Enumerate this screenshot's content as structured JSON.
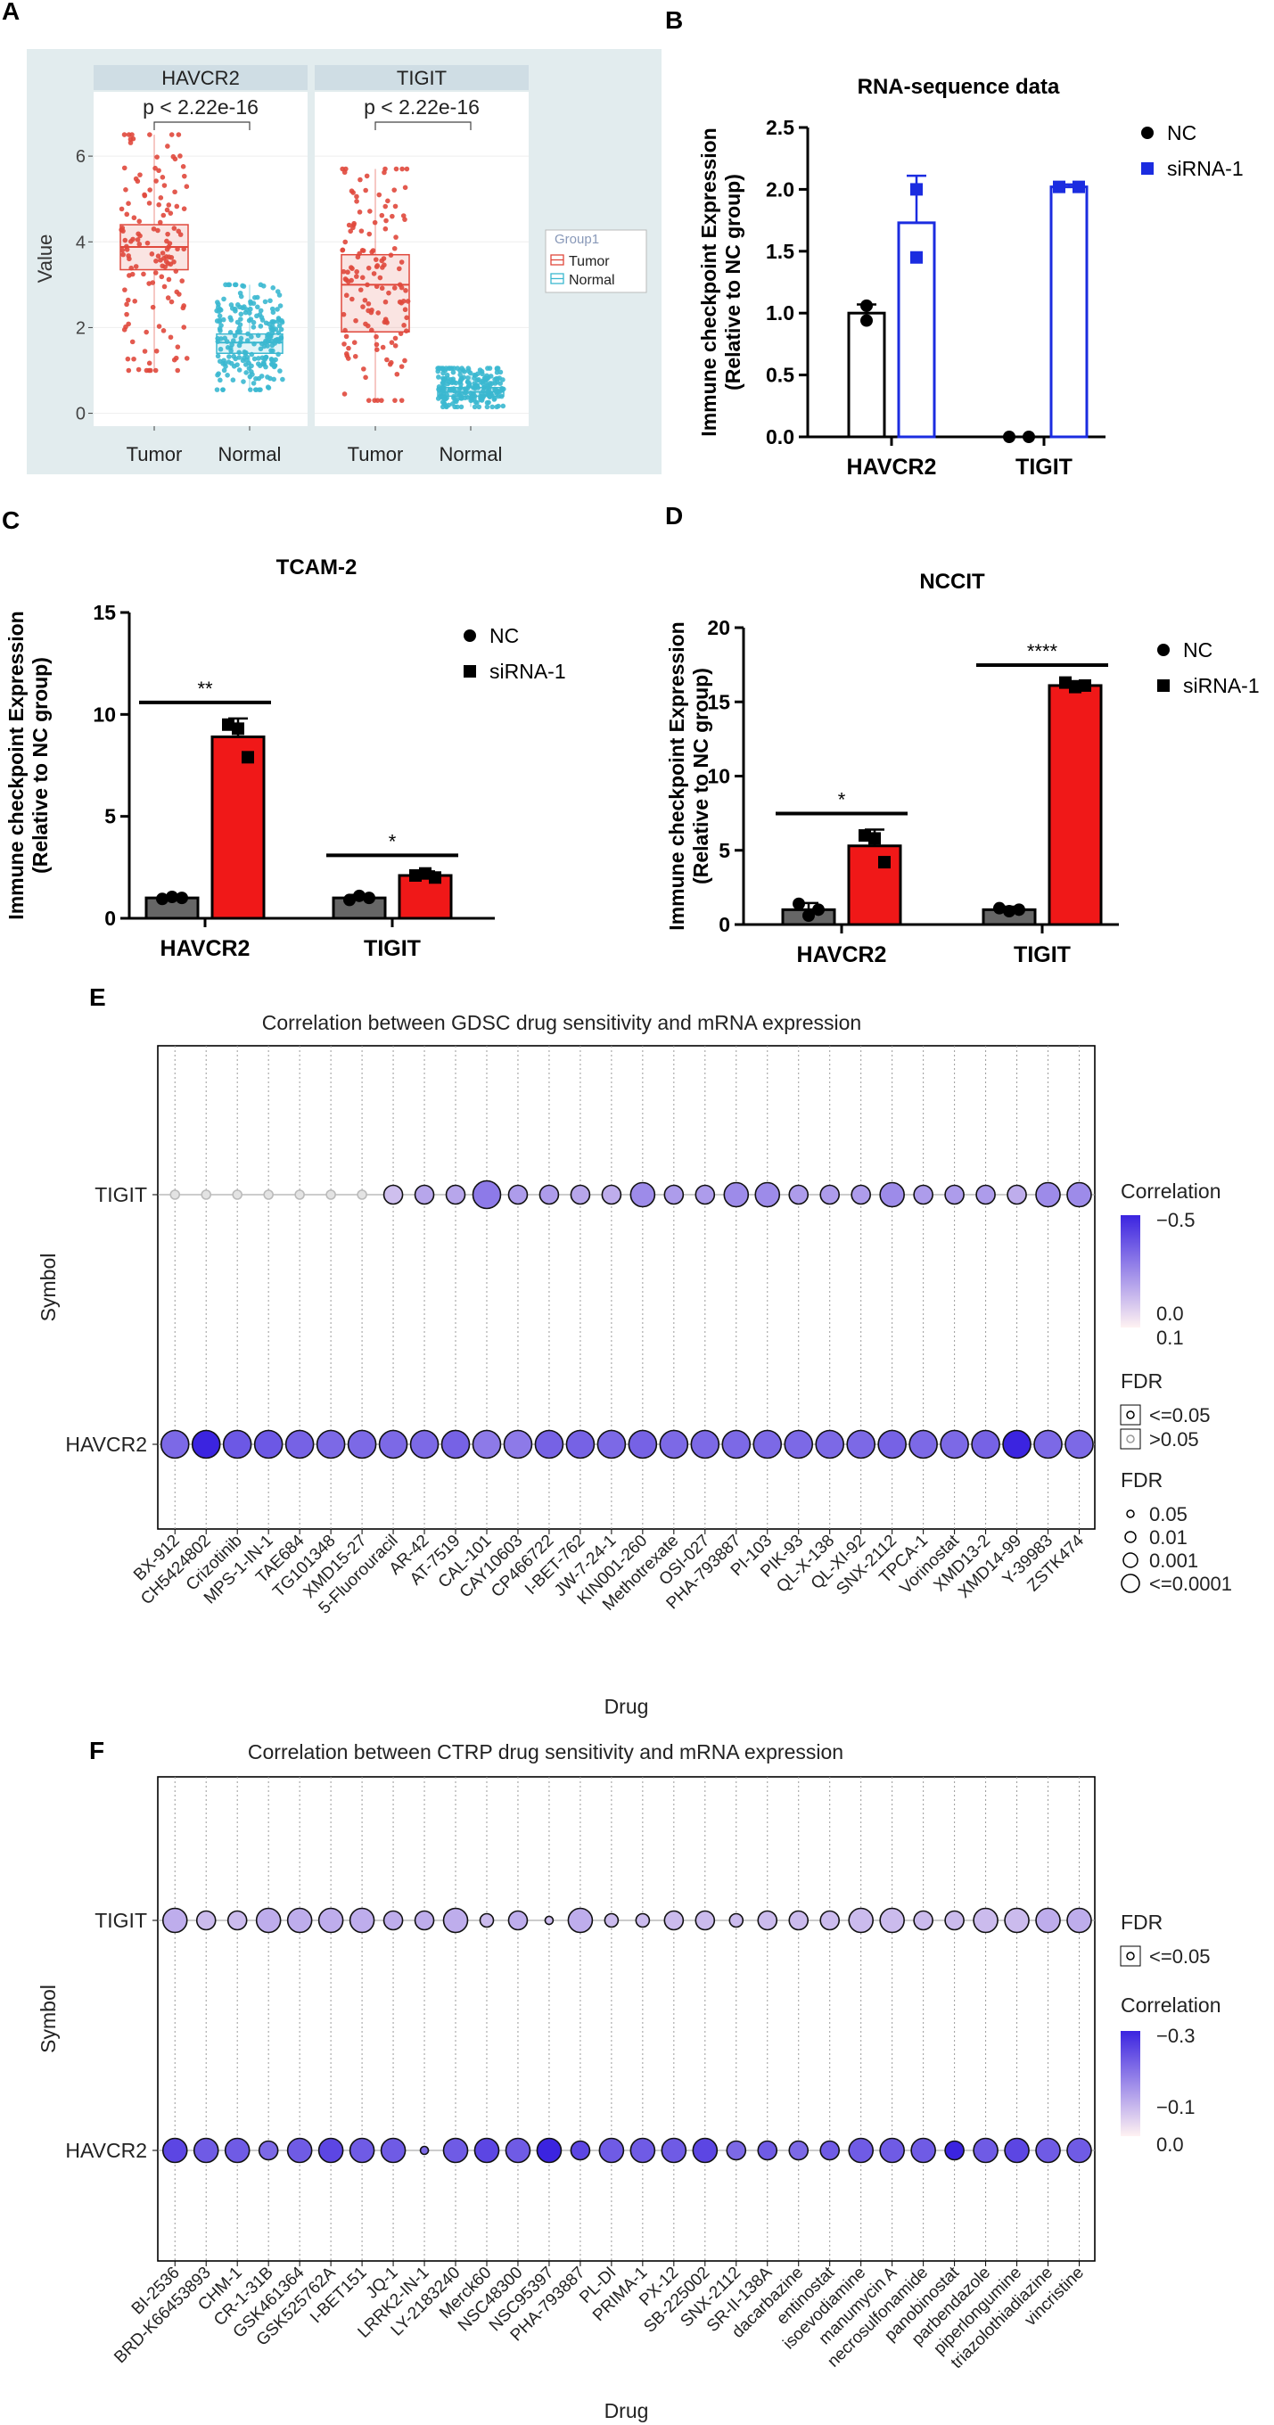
{
  "panel_letters": [
    "A",
    "B",
    "C",
    "D",
    "E",
    "F"
  ],
  "colors": {
    "tumor": "#E0483C",
    "normal": "#3BB8D0",
    "panel_bg": "#E2ECEE",
    "strip_bg": "#CFDDE4",
    "nc_dark": "#666666",
    "sirna_red": "#F01818",
    "sirna_blue": "#1B2CE0",
    "bubble_min": "#FFF2F2",
    "bubble_max": "#3B24E0",
    "bubble_nonsig": "#E3E3E3"
  },
  "chart_data": [
    {
      "id": "A",
      "type": "box",
      "facets": [
        "HAVCR2",
        "TIGIT"
      ],
      "categories": [
        "Tumor",
        "Normal"
      ],
      "ylabel": "Value",
      "ylim": [
        -0.3,
        7.5
      ],
      "yticks": [
        0,
        2,
        4,
        6
      ],
      "annotation": "p < 2.22e-16",
      "legend_title": "Group1",
      "legend": [
        "Tumor",
        "Normal"
      ],
      "boxes": [
        {
          "facet": "HAVCR2",
          "group": "Tumor",
          "q1": 3.35,
          "median": 3.88,
          "q3": 4.4,
          "lo": 1.0,
          "hi": 6.5
        },
        {
          "facet": "HAVCR2",
          "group": "Normal",
          "q1": 1.4,
          "median": 1.65,
          "q3": 1.85,
          "lo": 0.55,
          "hi": 3.0
        },
        {
          "facet": "TIGIT",
          "group": "Tumor",
          "q1": 1.9,
          "median": 3.0,
          "q3": 3.7,
          "lo": 0.3,
          "hi": 5.7
        },
        {
          "facet": "TIGIT",
          "group": "Normal",
          "q1": 0.4,
          "median": 0.5,
          "q3": 0.6,
          "lo": 0.15,
          "hi": 1.05
        }
      ]
    },
    {
      "id": "B",
      "type": "bar",
      "title": "RNA-sequence data",
      "ylabel_lines": [
        "Immune checkpoint Expression",
        "(Relative to NC group)"
      ],
      "categories": [
        "HAVCR2",
        "TIGIT"
      ],
      "ylim": [
        0,
        2.5
      ],
      "yticks": [
        "0.0",
        "0.5",
        "1.0",
        "1.5",
        "2.0",
        "2.5"
      ],
      "series": [
        {
          "name": "NC",
          "marker": "circle",
          "values": [
            1.0,
            0.0
          ],
          "err": [
            0.07,
            0
          ],
          "points": [
            [
              0.94,
              1.06
            ],
            [
              0.0,
              0.0
            ]
          ]
        },
        {
          "name": "siRNA-1",
          "marker": "square",
          "values": [
            1.73,
            2.02
          ],
          "err": [
            0.38,
            0.02
          ],
          "points": [
            [
              2.0,
              1.45
            ],
            [
              2.02,
              2.02
            ]
          ]
        }
      ]
    },
    {
      "id": "C",
      "type": "bar",
      "title": "TCAM-2",
      "ylabel_lines": [
        "Immune checkpoint Expression",
        "(Relative to NC group)"
      ],
      "categories": [
        "HAVCR2",
        "TIGIT"
      ],
      "ylim": [
        0,
        15
      ],
      "yticks": [
        "0",
        "5",
        "10",
        "15"
      ],
      "series": [
        {
          "name": "NC",
          "marker": "circle",
          "values": [
            1.0,
            1.0
          ],
          "err": [
            0.12,
            0.15
          ],
          "points": [
            [
              0.95,
              1.05,
              1.0
            ],
            [
              0.9,
              1.1,
              1.0
            ]
          ]
        },
        {
          "name": "siRNA-1",
          "marker": "square",
          "values": [
            8.9,
            2.1
          ],
          "err": [
            0.9,
            0.2
          ],
          "points": [
            [
              9.5,
              9.3,
              7.9
            ],
            [
              2.1,
              2.2,
              2.0
            ]
          ]
        }
      ],
      "significance": [
        "**",
        "*"
      ]
    },
    {
      "id": "D",
      "type": "bar",
      "title": "NCCIT",
      "ylabel_lines": [
        "Immune checkpoint Expression",
        "(Relative to NC group)"
      ],
      "categories": [
        "HAVCR2",
        "TIGIT"
      ],
      "ylim": [
        0,
        20
      ],
      "yticks": [
        "0",
        "5",
        "10",
        "15",
        "20"
      ],
      "series": [
        {
          "name": "NC",
          "marker": "circle",
          "values": [
            1.0,
            1.0
          ],
          "err": [
            0.45,
            0.2
          ],
          "points": [
            [
              1.4,
              0.6,
              1.0
            ],
            [
              1.1,
              0.9,
              1.0
            ]
          ]
        },
        {
          "name": "siRNA-1",
          "marker": "square",
          "values": [
            5.3,
            16.1
          ],
          "err": [
            1.1,
            0.3
          ],
          "points": [
            [
              6.0,
              5.8,
              4.2
            ],
            [
              16.3,
              16.0,
              16.1
            ]
          ]
        }
      ],
      "significance": [
        "*",
        "****"
      ]
    },
    {
      "id": "E",
      "type": "bubble",
      "title": "Correlation between GDSC drug sensitivity and mRNA expression",
      "xlabel": "Drug",
      "ylabel": "Symbol",
      "rows": [
        "TIGIT",
        "HAVCR2"
      ],
      "drugs": [
        "BX-912",
        "CH5424802",
        "Crizotinib",
        "MPS-1-IN-1",
        "TAE684",
        "TG101348",
        "XMD15-27",
        "5-Fluorouracil",
        "AR-42",
        "AT-7519",
        "CAL-101",
        "CAY10603",
        "CP466722",
        "I-BET-762",
        "JW-7-24-1",
        "KIN001-260",
        "Methotrexate",
        "OSI-027",
        "PHA-793887",
        "PI-103",
        "PIK-93",
        "QL-X-138",
        "QL-XI-92",
        "SNX-2112",
        "TPCA-1",
        "Vorinostat",
        "XMD13-2",
        "XMD14-99",
        "Y-39983",
        "ZSTK474"
      ],
      "corr": [
        [
          -0.02,
          -0.02,
          -0.02,
          -0.02,
          -0.02,
          -0.02,
          -0.02,
          -0.05,
          -0.12,
          -0.12,
          -0.25,
          -0.15,
          -0.15,
          -0.12,
          -0.1,
          -0.2,
          -0.15,
          -0.15,
          -0.2,
          -0.2,
          -0.15,
          -0.15,
          -0.15,
          -0.2,
          -0.15,
          -0.15,
          -0.15,
          -0.1,
          -0.2,
          -0.2
        ],
        [
          -0.3,
          -0.5,
          -0.35,
          -0.35,
          -0.32,
          -0.3,
          -0.3,
          -0.3,
          -0.3,
          -0.32,
          -0.25,
          -0.25,
          -0.32,
          -0.32,
          -0.3,
          -0.32,
          -0.3,
          -0.3,
          -0.3,
          -0.3,
          -0.3,
          -0.3,
          -0.3,
          -0.32,
          -0.3,
          -0.3,
          -0.32,
          -0.5,
          -0.3,
          -0.3
        ]
      ],
      "size_level": [
        [
          1,
          1,
          1,
          1,
          1,
          1,
          1,
          2,
          2,
          2,
          4,
          2,
          2,
          2,
          2,
          3,
          2,
          2,
          3,
          3,
          2,
          2,
          2,
          3,
          2,
          2,
          2,
          2,
          3,
          3
        ],
        [
          4,
          4,
          4,
          4,
          4,
          4,
          4,
          4,
          4,
          4,
          4,
          4,
          4,
          4,
          4,
          4,
          4,
          4,
          4,
          4,
          4,
          4,
          4,
          4,
          4,
          4,
          4,
          4,
          4,
          4
        ]
      ],
      "significant": [
        [
          false,
          false,
          false,
          false,
          false,
          false,
          false,
          true,
          true,
          true,
          true,
          true,
          true,
          true,
          true,
          true,
          true,
          true,
          true,
          true,
          true,
          true,
          true,
          true,
          true,
          true,
          true,
          true,
          true,
          true
        ],
        [
          true,
          true,
          true,
          true,
          true,
          true,
          true,
          true,
          true,
          true,
          true,
          true,
          true,
          true,
          true,
          true,
          true,
          true,
          true,
          true,
          true,
          true,
          true,
          true,
          true,
          true,
          true,
          true,
          true,
          true
        ]
      ],
      "color_legend": {
        "title": "Correlation",
        "labels": [
          "−0.5",
          "0.0",
          "0.1"
        ],
        "range": [
          -0.5,
          0.1
        ]
      },
      "fdr_legend": {
        "title": "FDR",
        "labels": [
          "<=0.05",
          ">0.05"
        ]
      },
      "size_legend": {
        "title": "FDR",
        "labels": [
          "0.05",
          "0.01",
          "0.001",
          "<=0.0001"
        ]
      }
    },
    {
      "id": "F",
      "type": "bubble",
      "title": "Correlation between CTRP drug sensitivity and mRNA expression",
      "xlabel": "Drug",
      "ylabel": "Symbol",
      "rows": [
        "TIGIT",
        "HAVCR2"
      ],
      "drugs": [
        "BI-2536",
        "BRD-K66453893",
        "CHM-1",
        "CR-1-31B",
        "GSK461364",
        "GSK525762A",
        "I-BET151",
        "JQ-1",
        "LRRK2-IN-1",
        "LY-2183240",
        "Merck60",
        "NSC48300",
        "NSC95397",
        "PHA-793887",
        "PL-DI",
        "PRIMA-1",
        "PX-12",
        "SB-225002",
        "SNX-2112",
        "SR-II-138A",
        "dacarbazine",
        "entinostat",
        "isoevodiamine",
        "manumycin A",
        "necrosulfonamide",
        "panobinostat",
        "parbendazole",
        "piperlongumine",
        "triazolothiadiazine",
        "vincristine"
      ],
      "corr": [
        [
          -0.1,
          -0.08,
          -0.08,
          -0.1,
          -0.1,
          -0.1,
          -0.1,
          -0.1,
          -0.1,
          -0.1,
          -0.08,
          -0.1,
          -0.08,
          -0.1,
          -0.08,
          -0.08,
          -0.08,
          -0.08,
          -0.08,
          -0.08,
          -0.08,
          -0.08,
          -0.08,
          -0.08,
          -0.08,
          -0.08,
          -0.08,
          -0.08,
          -0.1,
          -0.1
        ],
        [
          -0.25,
          -0.22,
          -0.22,
          -0.2,
          -0.22,
          -0.25,
          -0.22,
          -0.22,
          -0.2,
          -0.22,
          -0.25,
          -0.22,
          -0.3,
          -0.25,
          -0.22,
          -0.22,
          -0.22,
          -0.25,
          -0.2,
          -0.22,
          -0.2,
          -0.22,
          -0.22,
          -0.22,
          -0.22,
          -0.3,
          -0.22,
          -0.25,
          -0.22,
          -0.22
        ]
      ],
      "size_level": [
        [
          3,
          2,
          2,
          3,
          3,
          3,
          3,
          2,
          2,
          3,
          1,
          2,
          0,
          3,
          1,
          1,
          2,
          2,
          1,
          2,
          2,
          2,
          3,
          3,
          2,
          2,
          3,
          3,
          3,
          3
        ],
        [
          3,
          3,
          3,
          2,
          3,
          3,
          3,
          3,
          0,
          3,
          3,
          3,
          3,
          2,
          3,
          3,
          3,
          3,
          2,
          2,
          2,
          2,
          3,
          3,
          3,
          2,
          3,
          3,
          3,
          3
        ]
      ],
      "significant": [
        [
          true,
          true,
          true,
          true,
          true,
          true,
          true,
          true,
          true,
          true,
          true,
          true,
          true,
          true,
          true,
          true,
          true,
          true,
          true,
          true,
          true,
          true,
          true,
          true,
          true,
          true,
          true,
          true,
          true,
          true
        ],
        [
          true,
          true,
          true,
          true,
          true,
          true,
          true,
          true,
          true,
          true,
          true,
          true,
          true,
          true,
          true,
          true,
          true,
          true,
          true,
          true,
          true,
          true,
          true,
          true,
          true,
          true,
          true,
          true,
          true,
          true
        ]
      ],
      "color_legend": {
        "title": "Correlation",
        "labels": [
          "−0.3",
          "−0.1",
          "0.0"
        ],
        "range": [
          -0.3,
          0.0
        ]
      },
      "fdr_legend": {
        "title": "FDR",
        "labels": [
          "<=0.05"
        ]
      }
    }
  ]
}
